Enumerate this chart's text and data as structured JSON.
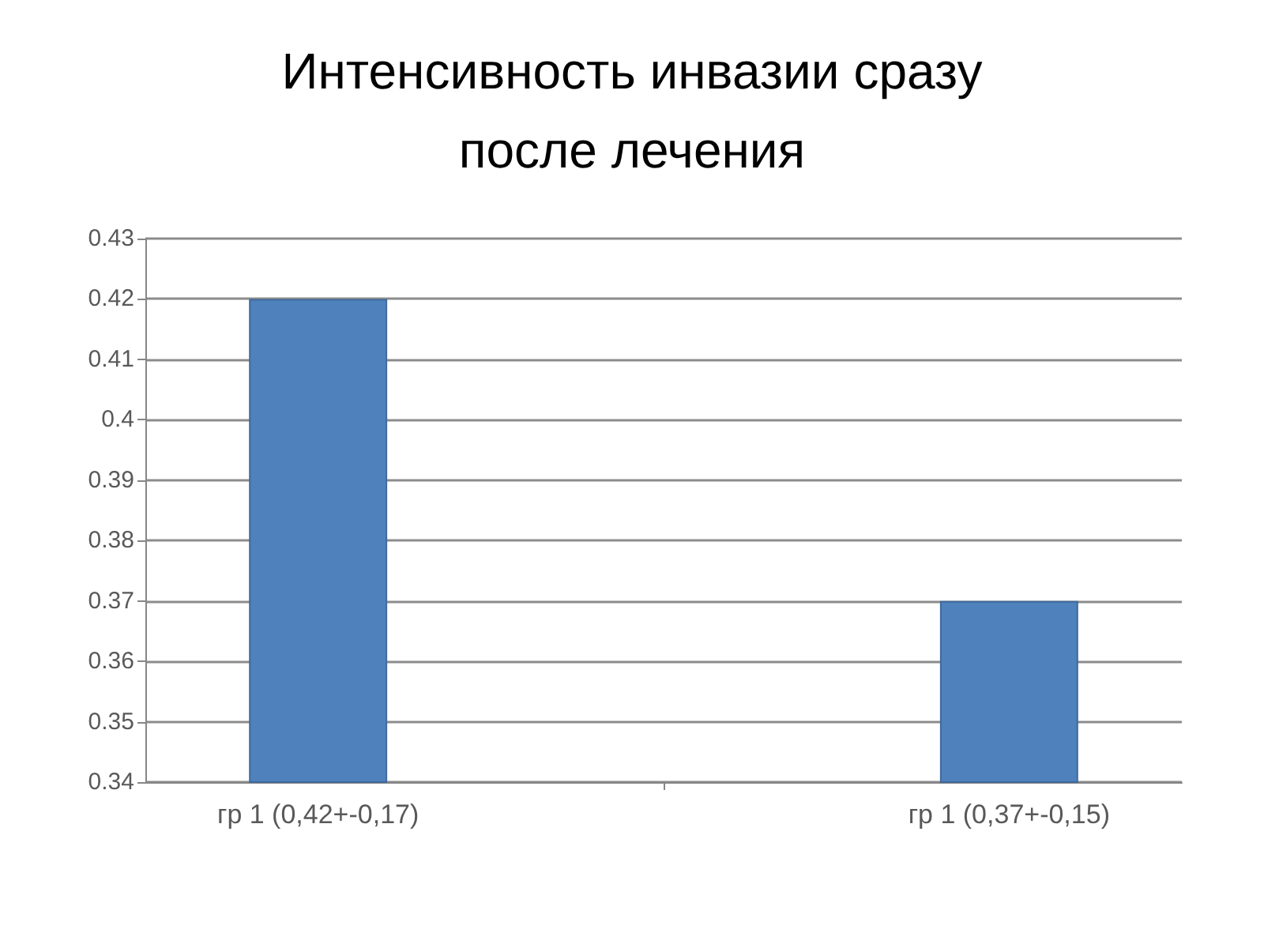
{
  "chart_data": {
    "type": "bar",
    "title": "Интенсивность инвазии сразу после лечения",
    "categories": [
      "гр 1 (0,42+-0,17)",
      null,
      "гр 1 (0,37+-0,15)"
    ],
    "values": [
      0.42,
      null,
      0.37
    ],
    "color": "#4f81bd",
    "ylim": [
      0.34,
      0.43
    ],
    "yticks": [
      0.34,
      0.35,
      0.36,
      0.37,
      0.38,
      0.39,
      0.4,
      0.41,
      0.42,
      0.43
    ],
    "grid": "y"
  }
}
